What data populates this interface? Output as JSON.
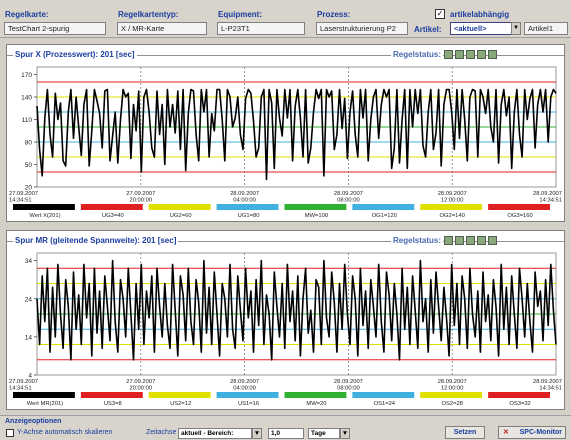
{
  "header": {
    "regelkarte_label": "Regelkarte:",
    "regelkarte_value": "TestChart 2-spurig",
    "regelkartentyp_label": "Regelkartentyp:",
    "regelkartentyp_value": "X / MR-Karte",
    "equipment_label": "Equipment:",
    "equipment_value": "L-P23T1",
    "prozess_label": "Prozess:",
    "prozess_value": "Laserstrukturierung P2",
    "artikelabhaengig_label": "artikelabhängig",
    "artikel_label": "Artikel:",
    "artikel_selected": "<aktuell>",
    "artikel_value": "Artikel1"
  },
  "chart1_title": "Spur X (Prozesswert): 201 [sec]",
  "chart2_title": "Spur MR (gleitende Spannweite): 201 [sec]",
  "regelstatus_label": "Regelstatus:",
  "bottom": {
    "section_label": "Anzeigeoptionen",
    "yaxis_checkbox_label": "Y-Achse automatisch skalieren",
    "zeitachse_label": "Zeitachse",
    "bereich_value": "aktuell - Bereich:",
    "num_value": "1,0",
    "unit_value": "Tage",
    "setzen_label": "Setzen",
    "spc_label": "SPC-Monitor"
  },
  "chart_data": [
    {
      "type": "line",
      "title": "Spur X (Prozesswert): 201 [sec]",
      "ylim": [
        20,
        180
      ],
      "yticks": [
        "170",
        "140",
        "110",
        "80",
        "50",
        "20"
      ],
      "xticks": [
        "27.09.2007\n14:34:51",
        "27.09.2007\n20:00:00",
        "28.09.2007\n04:00:00",
        "28.09.2007\n08:00:00",
        "28.09.2007\n12:00:00",
        "28.09.2007\n14:34:51"
      ],
      "limits": [
        {
          "name": "UG3=40",
          "value": 40,
          "color": "#e02020"
        },
        {
          "name": "UG2=60",
          "value": 60,
          "color": "#e0e000"
        },
        {
          "name": "UG1=80",
          "value": 80,
          "color": "#40b0e0"
        },
        {
          "name": "MW=100",
          "value": 100,
          "color": "#30b030"
        },
        {
          "name": "OG1=120",
          "value": 120,
          "color": "#40b0e0"
        },
        {
          "name": "OG2=140",
          "value": 140,
          "color": "#e0e000"
        },
        {
          "name": "OG3=160",
          "value": 160,
          "color": "#e02020"
        }
      ],
      "legend": [
        {
          "name": "Wert X(201)",
          "color": "#000000"
        },
        {
          "name": "UG3=40",
          "color": "#e02020"
        },
        {
          "name": "UG2=60",
          "color": "#e0e000"
        },
        {
          "name": "UG1=80",
          "color": "#40b0e0"
        },
        {
          "name": "MW=100",
          "color": "#30b030"
        },
        {
          "name": "OG1=120",
          "color": "#40b0e0"
        },
        {
          "name": "OG2=140",
          "color": "#e0e000"
        },
        {
          "name": "OG3=160",
          "color": "#e02020"
        }
      ],
      "values": [
        128,
        70,
        35,
        112,
        150,
        90,
        60,
        145,
        110,
        132,
        55,
        48,
        120,
        150,
        85,
        140,
        100,
        62,
        130,
        150,
        48,
        95,
        150,
        135,
        118,
        72,
        148,
        150,
        55,
        88,
        120,
        52,
        110,
        150,
        140,
        145,
        58,
        130,
        95,
        148,
        40,
        140,
        150,
        120,
        72,
        60,
        148,
        90,
        130,
        50,
        150,
        100,
        130,
        92,
        148,
        70,
        150,
        42,
        118,
        150,
        148,
        90,
        55,
        150,
        120,
        150,
        60,
        118,
        95,
        150,
        150,
        110,
        55,
        150,
        140,
        100,
        112,
        140,
        90,
        70,
        138,
        150,
        145,
        108,
        60,
        72,
        140,
        150,
        30,
        150,
        132,
        45,
        150,
        112,
        88,
        150,
        112,
        150,
        55,
        128,
        150,
        112,
        60,
        150,
        52,
        72,
        120,
        150,
        138,
        150,
        35,
        150,
        140,
        148,
        70,
        90,
        150,
        98,
        138,
        58,
        120,
        148,
        90,
        60,
        150,
        112,
        150,
        55,
        110,
        140,
        150,
        85,
        130,
        150,
        140,
        150,
        45,
        72,
        150,
        52,
        110,
        150,
        45,
        150,
        100,
        150,
        118,
        150,
        75,
        60,
        120,
        150,
        70,
        92,
        150,
        48,
        130,
        150,
        150,
        120,
        70,
        150,
        85,
        150,
        110,
        55,
        140,
        150,
        148,
        60,
        150,
        140,
        118,
        150,
        100,
        80,
        150,
        52,
        130,
        150,
        115,
        140,
        45,
        120,
        150,
        90,
        60,
        150,
        110,
        138,
        150,
        72,
        130,
        150,
        120,
        150,
        80,
        140,
        150,
        145
      ]
    },
    {
      "type": "line",
      "title": "Spur MR (gleitende Spannweite): 201 [sec]",
      "ylim": [
        4,
        36
      ],
      "yticks": [
        "34",
        "24",
        "14",
        "4"
      ],
      "xticks": [
        "27.09.2007\n14:34:51",
        "27.09.2007\n20:00:00",
        "28.09.2007\n04:00:00",
        "28.09.2007\n08:00:00",
        "28.09.2007\n12:00:00",
        "28.09.2007\n14:34:51"
      ],
      "limits": [
        {
          "name": "US3=8",
          "value": 8,
          "color": "#e02020"
        },
        {
          "name": "US2=12",
          "value": 12,
          "color": "#e0e000"
        },
        {
          "name": "US1=16",
          "value": 16,
          "color": "#40b0e0"
        },
        {
          "name": "MW=20",
          "value": 20,
          "color": "#30b030"
        },
        {
          "name": "OS1=24",
          "value": 24,
          "color": "#40b0e0"
        },
        {
          "name": "OS2=28",
          "value": 28,
          "color": "#e0e000"
        },
        {
          "name": "OS3=32",
          "value": 32,
          "color": "#e02020"
        }
      ],
      "legend": [
        {
          "name": "Wert MR(201)",
          "color": "#000000"
        },
        {
          "name": "US3=8",
          "color": "#e02020"
        },
        {
          "name": "US2=12",
          "color": "#e0e000"
        },
        {
          "name": "US1=16",
          "color": "#40b0e0"
        },
        {
          "name": "MW=20",
          "color": "#30b030"
        },
        {
          "name": "OS1=24",
          "color": "#40b0e0"
        },
        {
          "name": "OS2=28",
          "color": "#e0e000"
        },
        {
          "name": "OS3=32",
          "color": "#e02020"
        }
      ],
      "values": [
        24,
        12,
        30,
        18,
        32,
        10,
        27,
        14,
        33,
        20,
        11,
        29,
        22,
        8,
        31,
        16,
        25,
        12,
        33,
        19,
        28,
        9,
        32,
        15,
        26,
        11,
        30,
        22,
        13,
        34,
        18,
        10,
        29,
        24,
        14,
        32,
        20,
        8,
        28,
        16,
        33,
        12,
        26,
        19,
        30,
        10,
        32,
        22,
        14,
        28,
        17,
        11,
        33,
        21,
        9,
        30,
        25,
        13,
        32,
        18,
        12,
        29,
        23,
        10,
        34,
        15,
        27,
        12,
        31,
        20,
        9,
        28,
        24,
        14,
        33,
        16,
        11,
        30,
        21,
        13,
        32,
        19,
        26,
        10,
        29,
        17,
        34,
        12,
        25,
        20,
        8,
        31,
        22,
        14,
        28,
        11,
        33,
        18,
        26,
        13,
        30,
        9,
        24,
        32,
        15,
        21,
        10,
        29,
        27,
        12,
        34,
        19,
        14,
        31,
        23,
        10,
        28,
        16,
        33,
        20,
        12,
        30,
        24,
        9,
        32,
        17,
        26,
        11,
        29,
        22,
        14,
        33,
        18,
        10,
        31,
        25,
        13,
        28,
        20,
        8,
        32,
        16,
        27,
        12,
        30,
        21,
        11,
        34,
        18,
        24,
        10,
        29,
        15,
        31,
        22,
        13,
        27,
        19,
        9,
        33,
        17,
        28,
        12,
        30,
        24,
        11,
        32,
        20,
        14,
        26,
        10,
        31,
        18,
        25,
        13,
        29,
        22,
        9,
        33,
        16,
        27,
        12,
        30,
        20,
        11,
        32,
        24,
        14,
        28,
        18,
        10,
        31,
        22,
        26,
        13,
        29,
        17,
        33,
        21,
        12
      ]
    }
  ]
}
